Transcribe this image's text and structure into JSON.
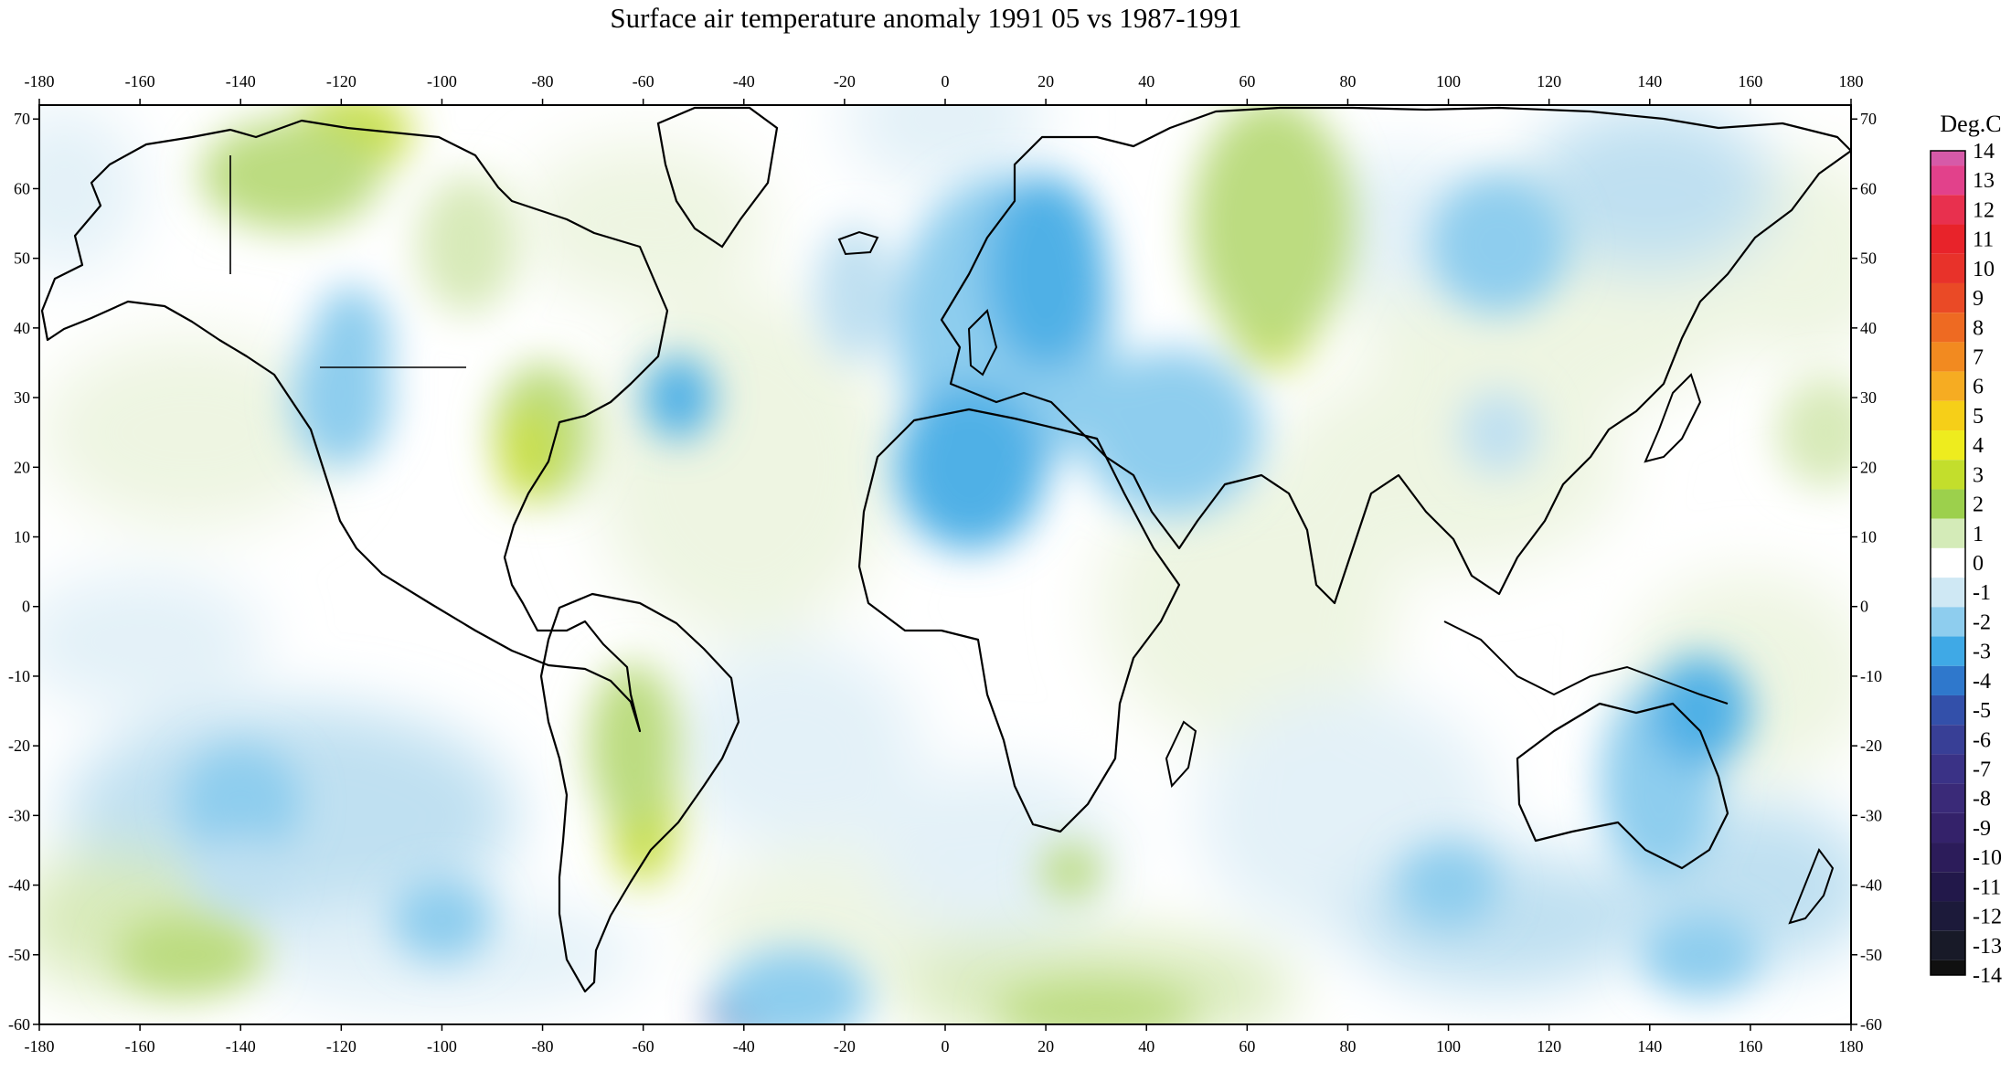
{
  "title": "Surface air temperature anomaly 1991 05 vs 1987-1991",
  "axes": {
    "lon_ticks": [
      "-180",
      "-160",
      "-140",
      "-120",
      "-100",
      "-80",
      "-60",
      "-40",
      "-20",
      "0",
      "20",
      "40",
      "60",
      "80",
      "100",
      "120",
      "140",
      "160",
      "180"
    ],
    "lat_ticks": [
      "70",
      "60",
      "50",
      "40",
      "30",
      "20",
      "10",
      "0",
      "-10",
      "-20",
      "-30",
      "-40",
      "-50",
      "-60"
    ],
    "lon_range": [
      -180,
      180
    ],
    "lat_range": [
      -60,
      72
    ]
  },
  "colorbar": {
    "unit_label": "Deg.C",
    "tick_labels": [
      "14",
      "13",
      "12",
      "11",
      "10",
      "9",
      "8",
      "7",
      "6",
      "5",
      "4",
      "3",
      "2",
      "1",
      "0",
      "-1",
      "-2",
      "-3",
      "-4",
      "-5",
      "-6",
      "-7",
      "-8",
      "-9",
      "-10",
      "-11",
      "-12",
      "-13",
      "-14"
    ],
    "colors": {
      "14": "#d65aa8",
      "13": "#e2418b",
      "12": "#e8304e",
      "11": "#e8232a",
      "10": "#e8322a",
      "9": "#ea4a26",
      "8": "#ee6a22",
      "7": "#f28a20",
      "6": "#f6ac22",
      "5": "#f6cf18",
      "4": "#eeec1e",
      "3": "#c3de2c",
      "2": "#9cd04c",
      "1": "#d4ebb8",
      "0": "#ffffff",
      "-1": "#cfe8f4",
      "-2": "#8ecdee",
      "-3": "#3fa9e6",
      "-4": "#2f78cc",
      "-5": "#3350aa",
      "-6": "#383f96",
      "-7": "#3a3286",
      "-8": "#3a2a78",
      "-9": "#34226a",
      "-10": "#2c1c5a",
      "-11": "#22184a",
      "-12": "#1c1a3a",
      "-13": "#181a28",
      "-14": "#101010"
    }
  },
  "field_palette": {
    "pos1": "#eef5e2",
    "pos2": "#d8eab9",
    "pos3": "#bcdc80",
    "pos4": "#c9df47",
    "neg1": "#e3f1f8",
    "neg2": "#bfe0f1",
    "neg3": "#8ecdee",
    "neg4": "#4fb0e6",
    "neg5": "#5254b0"
  }
}
